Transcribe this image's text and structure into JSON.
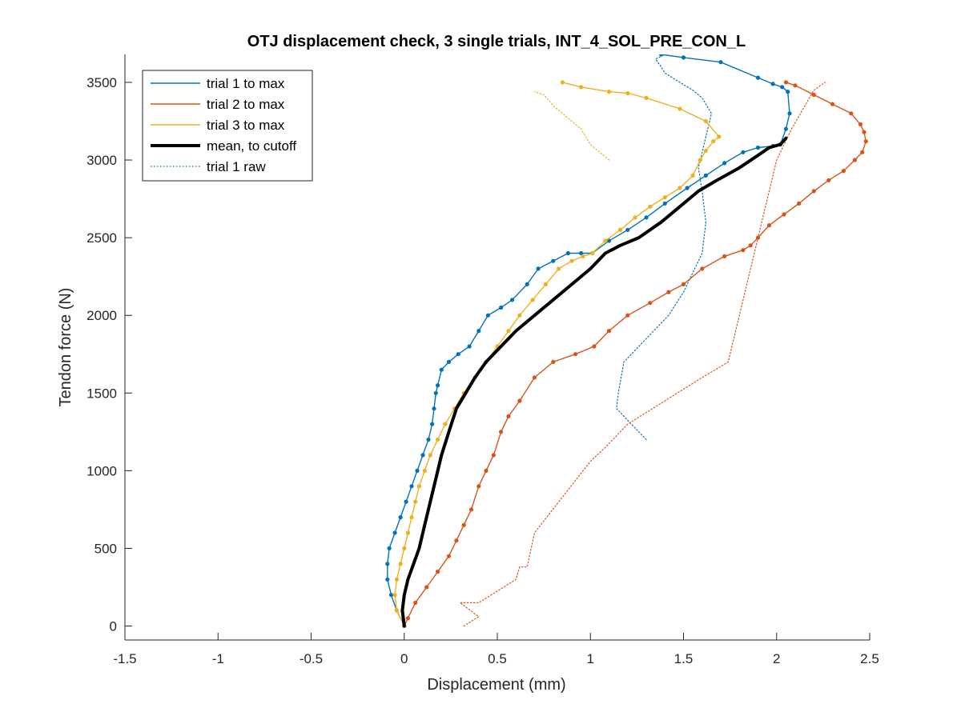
{
  "chart_data": {
    "type": "line",
    "title": "OTJ displacement check, 3 single trials, INT_4_SOL_PRE_CON_L",
    "xlabel": "Displacement (mm)",
    "ylabel": "Tendon force (N)",
    "xlim": [
      -1.5,
      2.5
    ],
    "ylim": [
      -90,
      3680
    ],
    "xticks": [
      -1.5,
      -1,
      -0.5,
      0,
      0.5,
      1,
      1.5,
      2,
      2.5
    ],
    "xtick_labels": [
      "-1.5",
      "-1",
      "-0.5",
      "0",
      "0.5",
      "1",
      "1.5",
      "2",
      "2.5"
    ],
    "yticks": [
      0,
      500,
      1000,
      1500,
      2000,
      2500,
      3000,
      3500
    ],
    "ytick_labels": [
      "0",
      "500",
      "1000",
      "1500",
      "2000",
      "2500",
      "3000",
      "3500"
    ],
    "grid": false,
    "legend_position": "top-left",
    "series": [
      {
        "name": "trial 1 to max",
        "color": "#0072BD",
        "style": "solid-with-markers",
        "x": [
          0,
          -0.04,
          -0.07,
          -0.09,
          -0.09,
          -0.08,
          -0.05,
          -0.02,
          0.01,
          0.04,
          0.07,
          0.1,
          0.13,
          0.15,
          0.16,
          0.17,
          0.18,
          0.2,
          0.24,
          0.29,
          0.35,
          0.4,
          0.45,
          0.52,
          0.58,
          0.66,
          0.72,
          0.8,
          0.88,
          0.95,
          1.01,
          1.1,
          1.2,
          1.3,
          1.4,
          1.52,
          1.62,
          1.72,
          1.82,
          1.9,
          1.98,
          2.02,
          2.05,
          2.07,
          2.06,
          2.03,
          1.98,
          1.9,
          1.7,
          1.5,
          1.38
        ],
        "y": [
          0,
          100,
          200,
          300,
          400,
          500,
          600,
          700,
          800,
          900,
          1000,
          1100,
          1200,
          1300,
          1400,
          1500,
          1550,
          1650,
          1700,
          1750,
          1800,
          1900,
          2000,
          2050,
          2100,
          2200,
          2300,
          2350,
          2400,
          2400,
          2400,
          2480,
          2550,
          2630,
          2720,
          2820,
          2900,
          2980,
          3050,
          3080,
          3090,
          3100,
          3200,
          3300,
          3440,
          3470,
          3490,
          3530,
          3630,
          3660,
          3680
        ]
      },
      {
        "name": "trial 2 to max",
        "color": "#D95319",
        "style": "solid-with-markers",
        "x": [
          0,
          0.02,
          0.06,
          0.12,
          0.18,
          0.24,
          0.28,
          0.32,
          0.36,
          0.4,
          0.44,
          0.48,
          0.52,
          0.56,
          0.62,
          0.7,
          0.8,
          0.92,
          1.02,
          1.1,
          1.2,
          1.32,
          1.42,
          1.5,
          1.6,
          1.72,
          1.82,
          1.86,
          1.9,
          1.96,
          2.04,
          2.12,
          2.2,
          2.28,
          2.36,
          2.42,
          2.46,
          2.48,
          2.47,
          2.45,
          2.4,
          2.3,
          2.2,
          2.1,
          2.05
        ],
        "y": [
          0,
          50,
          150,
          250,
          350,
          450,
          550,
          650,
          750,
          900,
          1000,
          1100,
          1250,
          1350,
          1450,
          1600,
          1700,
          1750,
          1800,
          1900,
          2000,
          2080,
          2150,
          2200,
          2300,
          2380,
          2420,
          2450,
          2500,
          2580,
          2650,
          2720,
          2800,
          2870,
          2930,
          3000,
          3050,
          3120,
          3180,
          3230,
          3300,
          3360,
          3420,
          3480,
          3500
        ]
      },
      {
        "name": "trial 3 to max",
        "color": "#EDB120",
        "style": "solid-with-markers",
        "x": [
          0,
          -0.04,
          -0.05,
          -0.04,
          -0.02,
          0.0,
          0.02,
          0.04,
          0.06,
          0.08,
          0.11,
          0.14,
          0.18,
          0.22,
          0.27,
          0.32,
          0.38,
          0.44,
          0.5,
          0.56,
          0.62,
          0.69,
          0.76,
          0.83,
          0.9,
          0.96,
          1.01,
          1.08,
          1.16,
          1.24,
          1.32,
          1.4,
          1.48,
          1.55,
          1.59,
          1.62,
          1.66,
          1.69,
          1.62,
          1.48,
          1.3,
          1.2,
          1.1,
          0.95,
          0.85
        ],
        "y": [
          0,
          100,
          200,
          300,
          400,
          500,
          600,
          700,
          800,
          900,
          1000,
          1100,
          1200,
          1300,
          1400,
          1500,
          1600,
          1700,
          1800,
          1900,
          2000,
          2100,
          2200,
          2300,
          2350,
          2380,
          2400,
          2480,
          2550,
          2630,
          2700,
          2760,
          2820,
          2900,
          3000,
          3060,
          3120,
          3150,
          3250,
          3330,
          3400,
          3430,
          3440,
          3470,
          3500
        ]
      },
      {
        "name": "mean, to cutoff",
        "color": "#000000",
        "style": "thick-solid",
        "x": [
          0,
          -0.01,
          0.0,
          0.02,
          0.05,
          0.08,
          0.11,
          0.14,
          0.17,
          0.2,
          0.24,
          0.28,
          0.33,
          0.38,
          0.44,
          0.52,
          0.6,
          0.7,
          0.8,
          0.9,
          1.0,
          1.08,
          1.16,
          1.26,
          1.38,
          1.48,
          1.58,
          1.68,
          1.8,
          1.9,
          1.96,
          2.02,
          2.05
        ],
        "y": [
          0,
          100,
          200,
          300,
          400,
          500,
          650,
          800,
          950,
          1100,
          1250,
          1400,
          1500,
          1600,
          1700,
          1800,
          1900,
          2000,
          2100,
          2200,
          2300,
          2400,
          2450,
          2500,
          2600,
          2700,
          2800,
          2870,
          2950,
          3030,
          3080,
          3100,
          3140
        ]
      },
      {
        "name": "trial 1 raw",
        "color": "#0072BD",
        "style": "dotted",
        "x": [
          1.3,
          1.22,
          1.14,
          1.15,
          1.18,
          1.3,
          1.42,
          1.5,
          1.56,
          1.6,
          1.62,
          1.6,
          1.58,
          1.6,
          1.62,
          1.65,
          1.6,
          1.55,
          1.48,
          1.4,
          1.38,
          1.35,
          1.4
        ],
        "y": [
          1200,
          1300,
          1400,
          1500,
          1700,
          1850,
          2000,
          2150,
          2300,
          2400,
          2600,
          2800,
          2950,
          3050,
          3150,
          3300,
          3400,
          3450,
          3500,
          3560,
          3600,
          3650,
          3680
        ]
      },
      {
        "name": "",
        "color": "#D95319",
        "style": "dotted",
        "x": [
          0.32,
          0.4,
          0.3,
          0.4,
          0.6,
          0.62,
          0.66,
          0.7,
          0.96,
          1.0,
          1.08,
          1.2,
          1.4,
          1.6,
          1.74,
          1.8,
          1.84,
          1.86,
          1.88,
          1.92,
          1.96,
          2.0,
          2.08,
          2.2,
          2.26
        ],
        "y": [
          0,
          60,
          150,
          150,
          300,
          380,
          380,
          600,
          1000,
          1060,
          1150,
          1300,
          1450,
          1600,
          1700,
          2000,
          2200,
          2300,
          2400,
          2600,
          2800,
          3000,
          3200,
          3450,
          3500
        ]
      },
      {
        "name": "",
        "color": "#EDB120",
        "style": "dotted",
        "x": [
          1.1,
          1.0,
          0.95,
          0.85,
          0.8,
          0.75,
          0.7
        ],
        "y": [
          3000,
          3100,
          3200,
          3300,
          3350,
          3420,
          3440
        ]
      }
    ]
  }
}
